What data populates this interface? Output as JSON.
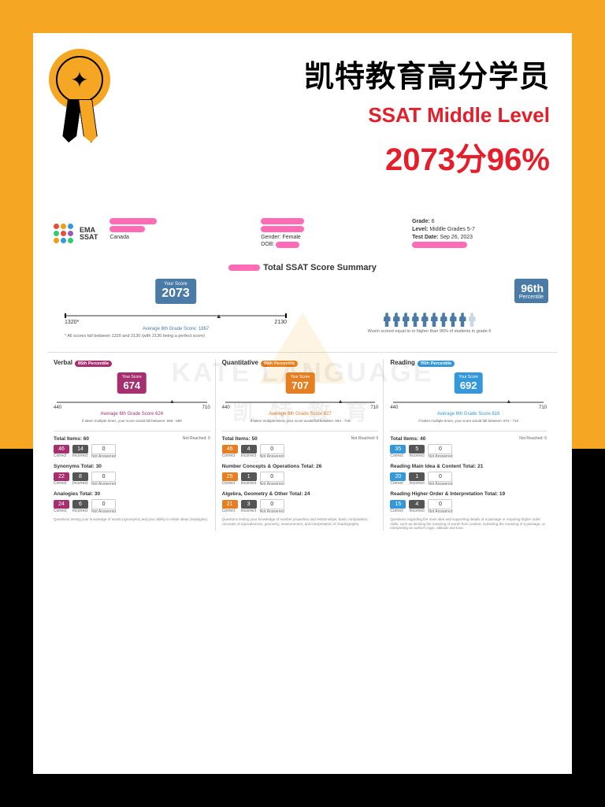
{
  "header": {
    "title_cn": "凯特教育高分学员",
    "title_en": "SSAT Middle Level",
    "title_score": "2073分96%"
  },
  "logo": {
    "brand1": "EMA",
    "brand2": "SSAT",
    "dot_colors": [
      "#e74c3c",
      "#f39c12",
      "#3498db",
      "#2ecc71",
      "#e74c3c",
      "#9b59b6",
      "#f39c12",
      "#3498db",
      "#2ecc71"
    ]
  },
  "student": {
    "country": "Canada",
    "gender_label": "Gender:",
    "gender": "Female",
    "dob_label": "DOB:",
    "grade_label": "Grade:",
    "grade": "6",
    "level_label": "Level:",
    "level": "Middle Grades 5-7",
    "testdate_label": "Test Date:",
    "testdate": "Sep 26, 2023"
  },
  "summary": {
    "title": "Total SSAT Score Summary",
    "your_score_label": "Your Score",
    "total_score": "2073",
    "scale_min": "1320*",
    "scale_max": "2130",
    "avg_text": "Average 6th Grade Score: 1867",
    "note": "* All scores fall between 1320 and 2130 (with 2130 being a perfect score)",
    "percentile_big": "96th",
    "percentile_lbl": "Percentile",
    "percentile_note": "Wuxin scored equal to or higher than 96% of students in grade 6"
  },
  "sections": [
    {
      "name": "Verbal",
      "pill": "85th Percentile",
      "pill_color": "#a6306f",
      "pin_color": "#a6306f",
      "score": "674",
      "min": "440",
      "max": "710",
      "avg": "Average 6th Grade Score 624",
      "range_note": "If taken multiple times, your score would fall between: 659 - 689",
      "total_label": "Total Items: 60",
      "not_reached": "Not Reached: 0",
      "correct": "46",
      "correct_color": "#a6306f",
      "incorrect": "14",
      "incorrect_color": "#555",
      "na": "0",
      "sub1_title": "Synonyms Total: 30",
      "sub1_c": "22",
      "sub1_i": "8",
      "sub1_n": "0",
      "sub2_title": "Analogies Total: 30",
      "sub2_c": "24",
      "sub2_i": "6",
      "sub2_n": "0",
      "desc": "Questions testing your knowledge of words (synonyms) and your ability to relate ideas (analogies)."
    },
    {
      "name": "Quantitative",
      "pill": "96th Percentile",
      "pill_color": "#e67e22",
      "pin_color": "#e67e22",
      "score": "707",
      "min": "440",
      "max": "710",
      "avg": "Average 6th Grade Score 627",
      "range_note": "If taken multiple times, your score would fall between: 693 - 718",
      "total_label": "Total Items: 50",
      "not_reached": "Not Reached: 0",
      "correct": "46",
      "correct_color": "#e67e22",
      "incorrect": "4",
      "incorrect_color": "#555",
      "na": "0",
      "sub1_title": "Number Concepts & Operations Total: 26",
      "sub1_c": "25",
      "sub1_i": "1",
      "sub1_n": "0",
      "sub2_title": "Algebra, Geometry & Other Total: 24",
      "sub2_c": "21",
      "sub2_i": "3",
      "sub2_n": "0",
      "desc": "Questions testing your knowledge of number properties and relationships, basic computation, concepts of equivalencies, geometry, measurement, and interpretation of charts/graphs."
    },
    {
      "name": "Reading",
      "pill": "95th Percentile",
      "pill_color": "#3498db",
      "pin_color": "#3498db",
      "score": "692",
      "min": "440",
      "max": "710",
      "avg": "Average 6th Grade Score 616",
      "range_note": "If taken multiple times, your score would fall between: 674 - 710",
      "total_label": "Total Items: 40",
      "not_reached": "Not Reached: 0",
      "correct": "35",
      "correct_color": "#3498db",
      "incorrect": "5",
      "incorrect_color": "#555",
      "na": "0",
      "sub1_title": "Reading Main Idea & Content Total: 21",
      "sub1_c": "20",
      "sub1_i": "1",
      "sub1_n": "0",
      "sub2_title": "Reading Higher Order & Interpretation Total: 19",
      "sub2_c": "15",
      "sub2_i": "4",
      "sub2_n": "0",
      "desc": "Questions regarding the main idea and supporting details of a passage or requiring higher order skills, such as deriving the meaning of words from context, extracting the meaning of a passage, or interpreting an author's logic, attitude and tone."
    }
  ],
  "labels": {
    "correct": "Correct",
    "incorrect": "Incorrect",
    "not_answered": "Not Answered",
    "your_score": "Your Score"
  },
  "watermark": {
    "en": "KATE LANGUAGE",
    "cn": "凯 特 教 育"
  }
}
